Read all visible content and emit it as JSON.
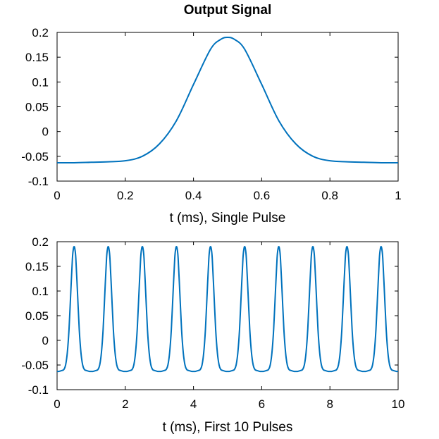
{
  "figure": {
    "title": "Output Signal"
  },
  "chart_data": [
    {
      "type": "line",
      "title": "Output Signal",
      "xlabel": "t (ms), Single Pulse",
      "ylabel": "",
      "xlim": [
        0,
        1
      ],
      "ylim": [
        -0.1,
        0.2
      ],
      "xticks": [
        0,
        0.2,
        0.4,
        0.6,
        0.8,
        1
      ],
      "xtick_labels": [
        "0",
        "0.2",
        "0.4",
        "0.6",
        "0.8",
        "1"
      ],
      "yticks": [
        -0.1,
        -0.05,
        0,
        0.05,
        0.1,
        0.15,
        0.2
      ],
      "ytick_labels": [
        "-0.1",
        "-0.05",
        "0",
        "0.05",
        "0.1",
        "0.15",
        "0.2"
      ],
      "grid": false,
      "color": "#0072bd",
      "series": [
        {
          "x": [
            0,
            0.05,
            0.1,
            0.15,
            0.2,
            0.25,
            0.3,
            0.35,
            0.4,
            0.45,
            0.48,
            0.5,
            0.52,
            0.55,
            0.6,
            0.65,
            0.7,
            0.75,
            0.8,
            0.85,
            0.9,
            0.95,
            1
          ],
          "y": [
            -0.063,
            -0.063,
            -0.062,
            -0.061,
            -0.059,
            -0.05,
            -0.025,
            0.022,
            0.095,
            0.166,
            0.186,
            0.19,
            0.186,
            0.166,
            0.095,
            0.022,
            -0.025,
            -0.05,
            -0.059,
            -0.061,
            -0.062,
            -0.063,
            -0.063
          ]
        }
      ]
    },
    {
      "type": "line",
      "title": "",
      "xlabel": "t (ms), First 10 Pulses",
      "ylabel": "",
      "xlim": [
        0,
        10
      ],
      "ylim": [
        -0.1,
        0.2
      ],
      "xticks": [
        0,
        2,
        4,
        6,
        8,
        10
      ],
      "xtick_labels": [
        "0",
        "2",
        "4",
        "6",
        "8",
        "10"
      ],
      "yticks": [
        -0.1,
        -0.05,
        0,
        0.05,
        0.1,
        0.15,
        0.2
      ],
      "ytick_labels": [
        "-0.1",
        "-0.05",
        "0",
        "0.05",
        "0.1",
        "0.15",
        "0.2"
      ],
      "grid": false,
      "color": "#0072bd",
      "pulse_count": 10,
      "pulse_period_ms": 1,
      "series": [
        {
          "note_shape": "repeats the single pulse every 1 ms",
          "x": [
            0,
            0.05,
            0.1,
            0.15,
            0.2,
            0.25,
            0.3,
            0.35,
            0.4,
            0.45,
            0.48,
            0.5,
            0.52,
            0.55,
            0.6,
            0.65,
            0.7,
            0.75,
            0.8,
            0.85,
            0.9,
            0.95,
            1
          ],
          "y": [
            -0.063,
            -0.063,
            -0.062,
            -0.061,
            -0.059,
            -0.05,
            -0.025,
            0.022,
            0.095,
            0.166,
            0.186,
            0.19,
            0.186,
            0.166,
            0.095,
            0.022,
            -0.025,
            -0.05,
            -0.059,
            -0.061,
            -0.062,
            -0.063,
            -0.063
          ]
        }
      ]
    }
  ]
}
